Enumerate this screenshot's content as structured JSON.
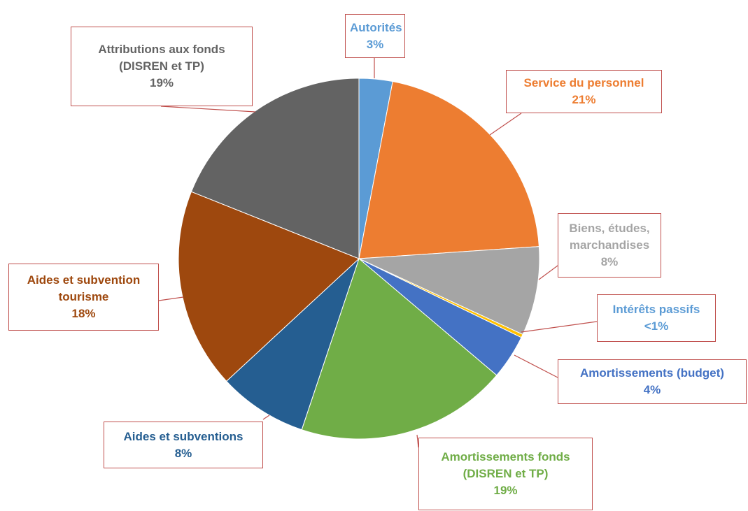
{
  "chart_data": {
    "type": "pie",
    "categories": [
      "Autorités",
      "Service du personnel",
      "Biens, études, marchandises",
      "Intérêts passifs",
      "Amortissements (budget)",
      "Amortissements fonds (DISREN et TP)",
      "Aides et subventions",
      "Aides et subvention tourisme",
      "Attributions aux fonds (DISREN et TP)"
    ],
    "values": [
      3,
      21,
      8,
      0.3,
      4,
      19,
      8,
      18,
      19
    ],
    "value_labels": [
      "3%",
      "21%",
      "8%",
      "<1%",
      "4%",
      "19%",
      "8%",
      "18%",
      "19%"
    ],
    "colors": [
      "#5b9bd5",
      "#ed7d31",
      "#a5a5a5",
      "#ffc000",
      "#4472c4",
      "#70ad47",
      "#255e91",
      "#9e480e",
      "#636363"
    ],
    "label_colors": [
      "#5b9bd5",
      "#ed7d31",
      "#a5a5a5",
      "#5b9bd5",
      "#4472c4",
      "#70ad47",
      "#255e91",
      "#9e480e",
      "#636363"
    ]
  }
}
